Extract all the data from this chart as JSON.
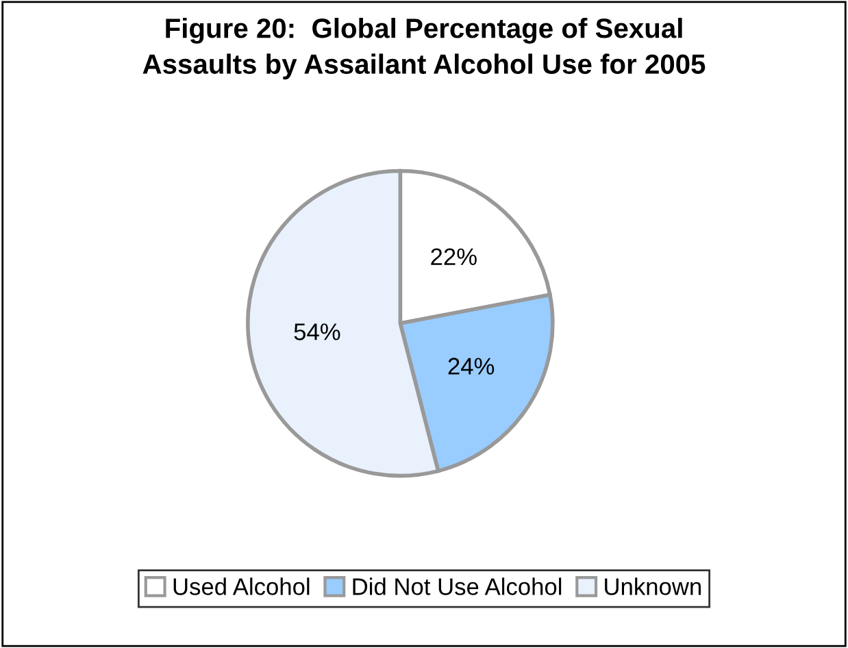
{
  "chart_data": {
    "type": "pie",
    "title": "Figure 20:  Global Percentage of Sexual\nAssaults by Assailant Alcohol Use for 2005",
    "categories": [
      "Used Alcohol",
      "Did Not Use Alcohol",
      "Unknown"
    ],
    "values": [
      22,
      24,
      54
    ],
    "colors": [
      "#ffffff",
      "#99ccff",
      "#e8f1fc"
    ],
    "value_labels": [
      "22%",
      "24%",
      "54%"
    ],
    "legend": "bottom"
  }
}
